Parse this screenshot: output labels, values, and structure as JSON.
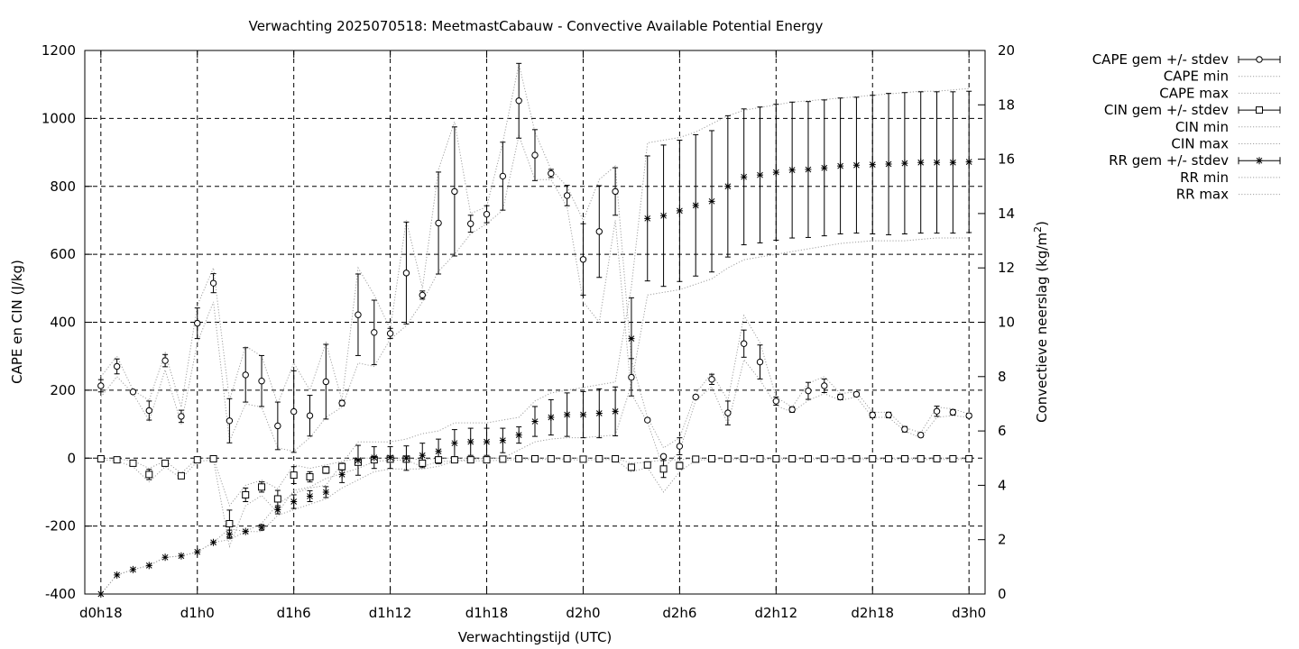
{
  "chart_data": {
    "type": "scatter",
    "title": "Verwachting 2025070518: MeetmastCabauw - Convective Available Potential Energy",
    "xlabel": "Verwachtingstijd (UTC)",
    "ylabel": "CAPE en CIN (J/kg)",
    "y2label": "Convectieve neerslag (kg/m",
    "y2label_sup": "2",
    "y2label_end": ")",
    "grid": true,
    "legend_position": "right",
    "x_unit": "hours since d0h0",
    "xlim": [
      17,
      73
    ],
    "ylim": [
      -400,
      1200
    ],
    "y2lim": [
      0,
      20
    ],
    "xticks": [
      {
        "value": 18,
        "label": "d0h18"
      },
      {
        "value": 24,
        "label": "d1h0"
      },
      {
        "value": 30,
        "label": "d1h6"
      },
      {
        "value": 36,
        "label": "d1h12"
      },
      {
        "value": 42,
        "label": "d1h18"
      },
      {
        "value": 48,
        "label": "d2h0"
      },
      {
        "value": 54,
        "label": "d2h6"
      },
      {
        "value": 60,
        "label": "d2h12"
      },
      {
        "value": 66,
        "label": "d2h18"
      },
      {
        "value": 72,
        "label": "d3h0"
      }
    ],
    "yticks": [
      -400,
      -200,
      0,
      200,
      400,
      600,
      800,
      1000,
      1200
    ],
    "y2ticks": [
      0,
      2,
      4,
      6,
      8,
      10,
      12,
      14,
      16,
      18,
      20
    ],
    "x": [
      18,
      19,
      20,
      21,
      22,
      23,
      24,
      25,
      26,
      27,
      28,
      29,
      30,
      31,
      32,
      33,
      34,
      35,
      36,
      37,
      38,
      39,
      40,
      41,
      42,
      43,
      44,
      45,
      46,
      47,
      48,
      49,
      50,
      51,
      52,
      53,
      54,
      55,
      56,
      57,
      58,
      59,
      60,
      61,
      62,
      63,
      64,
      65,
      66,
      67,
      68,
      69,
      70,
      71,
      72
    ],
    "series": [
      {
        "name": "CAPE gem +/- stdev",
        "axis": "y",
        "marker": "circle",
        "values": [
          213,
          270,
          195,
          140,
          287,
          123,
          397,
          515,
          110,
          245,
          227,
          95,
          137,
          125,
          225,
          162,
          422,
          370,
          367,
          545,
          480,
          692,
          785,
          690,
          718,
          830,
          1052,
          892,
          838,
          773,
          585,
          667,
          785,
          238,
          112,
          5,
          35,
          180,
          232,
          133,
          337,
          283,
          168,
          143,
          198,
          213,
          180,
          188,
          127,
          127,
          85,
          68,
          138,
          135,
          125
        ],
        "stdev": [
          18,
          22,
          4,
          28,
          18,
          18,
          45,
          28,
          65,
          80,
          75,
          70,
          120,
          60,
          110,
          8,
          120,
          95,
          15,
          150,
          12,
          150,
          190,
          25,
          25,
          100,
          110,
          75,
          12,
          30,
          105,
          135,
          70,
          55,
          5,
          5,
          25,
          5,
          15,
          35,
          40,
          50,
          12,
          8,
          25,
          20,
          8,
          6,
          8,
          8,
          8,
          6,
          15,
          8,
          6
        ]
      },
      {
        "name": "CAPE min",
        "axis": "y",
        "values": [
          180,
          240,
          190,
          110,
          260,
          100,
          340,
          460,
          50,
          160,
          150,
          30,
          20,
          60,
          120,
          150,
          280,
          270,
          350,
          390,
          460,
          550,
          600,
          660,
          690,
          730,
          950,
          820,
          820,
          740,
          460,
          400,
          700,
          190,
          105,
          -30,
          20,
          170,
          210,
          100,
          290,
          230,
          155,
          135,
          170,
          190,
          170,
          180,
          120,
          120,
          80,
          60,
          120,
          125,
          120
        ]
      },
      {
        "name": "CAPE max",
        "axis": "y",
        "values": [
          240,
          300,
          200,
          170,
          310,
          150,
          450,
          560,
          170,
          330,
          300,
          160,
          280,
          200,
          340,
          170,
          560,
          480,
          380,
          700,
          500,
          850,
          990,
          720,
          740,
          930,
          1160,
          960,
          850,
          800,
          700,
          820,
          860,
          290,
          120,
          30,
          60,
          190,
          250,
          170,
          420,
          340,
          180,
          150,
          220,
          240,
          190,
          195,
          135,
          135,
          90,
          75,
          150,
          145,
          130
        ]
      },
      {
        "name": "CIN gem +/- stdev",
        "axis": "y",
        "marker": "square",
        "values": [
          -2,
          -5,
          -15,
          -48,
          -15,
          -52,
          -5,
          -2,
          -193,
          -108,
          -85,
          -120,
          -50,
          -55,
          -35,
          -25,
          -12,
          -5,
          -3,
          -3,
          -15,
          -5,
          -5,
          -5,
          -5,
          -3,
          -2,
          -2,
          -2,
          -2,
          -3,
          -2,
          -2,
          -27,
          -20,
          -32,
          -22,
          -3,
          -2,
          -2,
          -2,
          -2,
          -2,
          -2,
          -2,
          -2,
          -2,
          -2,
          -2,
          -2,
          -2,
          -2,
          -2,
          -2,
          -2
        ],
        "stdev": [
          2,
          2,
          5,
          15,
          5,
          5,
          3,
          2,
          40,
          20,
          15,
          25,
          25,
          15,
          10,
          10,
          8,
          3,
          2,
          2,
          5,
          3,
          2,
          2,
          2,
          2,
          1,
          1,
          1,
          1,
          2,
          1,
          1,
          8,
          5,
          25,
          10,
          2,
          1,
          1,
          1,
          1,
          1,
          1,
          1,
          1,
          1,
          1,
          1,
          1,
          1,
          1,
          1,
          1,
          1
        ]
      },
      {
        "name": "CIN min",
        "axis": "y",
        "values": [
          -5,
          -8,
          -25,
          -70,
          -25,
          -60,
          -10,
          -5,
          -260,
          -140,
          -110,
          -160,
          -95,
          -85,
          -60,
          -45,
          -30,
          -10,
          -6,
          -6,
          -25,
          -10,
          -8,
          -8,
          -8,
          -6,
          -4,
          -4,
          -4,
          -4,
          -6,
          -4,
          -4,
          -40,
          -28,
          -100,
          -40,
          -6,
          -4,
          -4,
          -4,
          -4,
          -4,
          -4,
          -4,
          -4,
          -4,
          -4,
          -4,
          -4,
          -4,
          -4,
          -4,
          -4,
          -4
        ]
      },
      {
        "name": "CIN max",
        "axis": "y",
        "values": [
          0,
          -2,
          -8,
          -30,
          -8,
          -45,
          0,
          0,
          -140,
          -80,
          -65,
          -90,
          -20,
          -30,
          -20,
          -10,
          0,
          0,
          0,
          0,
          -5,
          0,
          0,
          0,
          0,
          0,
          0,
          0,
          0,
          0,
          0,
          0,
          0,
          -15,
          -12,
          -5,
          -5,
          0,
          0,
          0,
          0,
          0,
          0,
          0,
          0,
          0,
          0,
          0,
          0,
          0,
          0,
          0,
          0,
          0,
          0
        ]
      },
      {
        "name": "RR gem +/- stdev",
        "axis": "y2",
        "marker": "star",
        "values": [
          0.0,
          0.7,
          0.9,
          1.05,
          1.35,
          1.4,
          1.55,
          1.9,
          2.2,
          2.3,
          2.45,
          3.1,
          3.4,
          3.6,
          3.75,
          4.4,
          4.92,
          5.02,
          5.02,
          5.0,
          5.1,
          5.25,
          5.55,
          5.6,
          5.6,
          5.65,
          5.85,
          6.35,
          6.5,
          6.6,
          6.6,
          6.65,
          6.72,
          9.4,
          13.82,
          13.92,
          14.1,
          14.3,
          14.45,
          15.0,
          15.35,
          15.42,
          15.52,
          15.6,
          15.62,
          15.68,
          15.75,
          15.78,
          15.8,
          15.82,
          15.85,
          15.88,
          15.88,
          15.88,
          15.9
        ],
        "stdev": [
          0,
          0,
          0,
          0,
          0,
          0,
          0,
          0,
          0.15,
          0,
          0.1,
          0.15,
          0.25,
          0.2,
          0.2,
          0.3,
          0.55,
          0.4,
          0.4,
          0.45,
          0.45,
          0.45,
          0.5,
          0.5,
          0.5,
          0.45,
          0.3,
          0.55,
          0.65,
          0.8,
          0.85,
          0.9,
          0.9,
          1.5,
          2.3,
          2.6,
          2.6,
          2.6,
          2.6,
          2.6,
          2.5,
          2.5,
          2.5,
          2.5,
          2.5,
          2.5,
          2.5,
          2.5,
          2.55,
          2.6,
          2.6,
          2.6,
          2.6,
          2.6,
          2.6
        ]
      },
      {
        "name": "RR min",
        "axis": "y2",
        "values": [
          0.0,
          0.7,
          0.9,
          1.05,
          1.35,
          1.4,
          1.55,
          1.9,
          2.0,
          2.3,
          2.3,
          2.9,
          3.1,
          3.3,
          3.5,
          3.9,
          4.2,
          4.5,
          4.6,
          4.6,
          4.6,
          4.7,
          4.9,
          4.95,
          5.0,
          5.0,
          5.3,
          5.6,
          5.7,
          5.75,
          5.75,
          5.8,
          5.85,
          7.7,
          11.0,
          11.1,
          11.2,
          11.4,
          11.6,
          12.0,
          12.3,
          12.4,
          12.5,
          12.6,
          12.7,
          12.8,
          12.9,
          12.95,
          13.0,
          13.0,
          13.0,
          13.05,
          13.1,
          13.1,
          13.1
        ]
      },
      {
        "name": "RR max",
        "axis": "y2",
        "values": [
          0.0,
          0.7,
          0.9,
          1.05,
          1.35,
          1.4,
          1.55,
          1.9,
          2.4,
          2.3,
          2.6,
          3.3,
          3.7,
          3.9,
          4.0,
          4.8,
          5.6,
          5.6,
          5.6,
          5.7,
          5.9,
          6.0,
          6.3,
          6.3,
          6.3,
          6.4,
          6.5,
          7.1,
          7.4,
          7.5,
          7.6,
          7.7,
          7.8,
          11.3,
          16.6,
          16.7,
          16.8,
          17.0,
          17.3,
          17.6,
          17.8,
          17.9,
          18.0,
          18.1,
          18.15,
          18.2,
          18.25,
          18.3,
          18.35,
          18.4,
          18.45,
          18.5,
          18.5,
          18.55,
          18.6
        ]
      }
    ]
  }
}
